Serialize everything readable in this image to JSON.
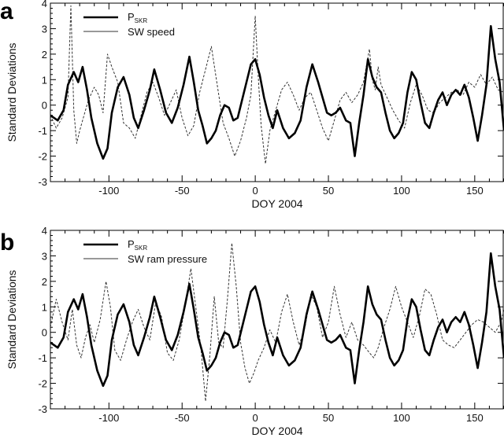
{
  "chart_data": [
    {
      "type": "line",
      "panel_label": "a",
      "xlabel": "DOY 2004",
      "ylabel": "Standard Deviations",
      "xlim": [
        -140,
        170
      ],
      "ylim": [
        -3,
        4
      ],
      "x_ticks": [
        -100,
        -50,
        0,
        50,
        100,
        150
      ],
      "y_ticks": [
        -3,
        -2,
        -1,
        0,
        1,
        2,
        3,
        4
      ],
      "legend_position": "top-left",
      "series": [
        {
          "name_main": "P",
          "name_sub": "SKR",
          "style": "thick-solid",
          "color": "#000000",
          "x": [
            -140,
            -135,
            -131,
            -128,
            -124,
            -121,
            -118,
            -115,
            -112,
            -108,
            -104,
            -101,
            -98,
            -94,
            -90,
            -86,
            -83,
            -80,
            -76,
            -72,
            -69,
            -65,
            -61,
            -57,
            -53,
            -49,
            -45,
            -42,
            -39,
            -36,
            -33,
            -30,
            -27,
            -24,
            -21,
            -18,
            -15,
            -12,
            -9,
            -6,
            -3,
            0,
            3,
            6,
            9,
            12,
            15,
            19,
            23,
            27,
            31,
            35,
            39,
            43,
            46,
            49,
            52,
            55,
            58,
            62,
            65,
            68,
            71,
            74,
            77,
            80,
            83,
            86,
            89,
            92,
            95,
            98,
            101,
            104,
            107,
            110,
            113,
            116,
            119,
            122,
            125,
            128,
            131,
            134,
            137,
            140,
            143,
            146,
            149,
            152,
            155,
            158,
            161,
            164,
            167,
            170
          ],
          "y": [
            -0.4,
            -0.6,
            -0.2,
            0.8,
            1.3,
            0.9,
            1.5,
            0.6,
            -0.5,
            -1.5,
            -2.1,
            -1.7,
            -0.3,
            0.7,
            1.1,
            0.4,
            -0.5,
            -0.9,
            -0.2,
            0.6,
            1.4,
            0.6,
            -0.3,
            -0.7,
            -0.1,
            0.8,
            1.9,
            0.9,
            -0.2,
            -0.8,
            -1.5,
            -1.3,
            -1.0,
            -0.4,
            0.0,
            -0.1,
            -0.6,
            -0.5,
            0.2,
            0.9,
            1.6,
            1.8,
            1.2,
            0.3,
            -0.4,
            -0.9,
            -0.2,
            -0.9,
            -1.3,
            -1.1,
            -0.6,
            0.7,
            1.6,
            0.9,
            0.3,
            -0.3,
            -0.4,
            -0.3,
            -0.1,
            -0.6,
            -0.7,
            -2.0,
            -0.7,
            0.4,
            1.8,
            1.1,
            0.7,
            0.5,
            -0.3,
            -1.0,
            -1.3,
            -1.1,
            -0.7,
            0.5,
            1.3,
            1.0,
            0.1,
            -0.7,
            -0.9,
            -0.3,
            0.2,
            0.5,
            0.0,
            0.4,
            0.6,
            0.4,
            0.8,
            0.3,
            -0.5,
            -1.4,
            -0.4,
            0.8,
            3.1,
            1.8,
            0.9,
            -1.0
          ]
        },
        {
          "name": "SW speed",
          "style": "thin-dashed",
          "color": "#333333",
          "x": [
            -140,
            -136,
            -132,
            -128,
            -126,
            -124,
            -122,
            -120,
            -117,
            -114,
            -110,
            -107,
            -104,
            -101,
            -98,
            -94,
            -90,
            -86,
            -82,
            -78,
            -74,
            -70,
            -66,
            -62,
            -58,
            -54,
            -50,
            -46,
            -42,
            -38,
            -34,
            -30,
            -26,
            -22,
            -18,
            -14,
            -10,
            -6,
            -3,
            0,
            2,
            4,
            7,
            10,
            14,
            18,
            22,
            26,
            30,
            34,
            38,
            42,
            46,
            50,
            54,
            58,
            62,
            66,
            70,
            74,
            78,
            80,
            82,
            84,
            86,
            90,
            94,
            98,
            102,
            106,
            110,
            114,
            118,
            122,
            126,
            130,
            134,
            138,
            142,
            146,
            150,
            154,
            158,
            162,
            166,
            170
          ],
          "y": [
            -0.4,
            -0.9,
            -0.5,
            0.3,
            3.9,
            -0.2,
            -1.5,
            -1.0,
            -0.4,
            0.2,
            0.7,
            0.4,
            -0.3,
            2.0,
            1.5,
            0.9,
            -0.7,
            -0.9,
            -1.3,
            -0.4,
            0.5,
            0.9,
            0.3,
            -0.4,
            0.1,
            0.6,
            -0.5,
            -1.2,
            -0.8,
            0.5,
            1.4,
            2.3,
            0.8,
            -0.7,
            -1.3,
            -2.0,
            -1.4,
            -0.5,
            0.4,
            3.5,
            1.2,
            -0.8,
            -2.3,
            -1.0,
            -0.2,
            0.6,
            0.9,
            0.4,
            -0.2,
            0.3,
            0.5,
            -0.2,
            -0.9,
            -1.4,
            -0.6,
            0.2,
            0.5,
            0.1,
            0.4,
            0.9,
            2.2,
            1.0,
            0.6,
            1.5,
            0.8,
            0.3,
            -0.2,
            -0.6,
            -0.9,
            0.1,
            0.8,
            0.4,
            -0.2,
            -0.3,
            0.1,
            0.3,
            0.5,
            0.6,
            0.4,
            0.9,
            0.7,
            1.2,
            0.8,
            1.1,
            0.6,
            0.5
          ]
        }
      ]
    },
    {
      "type": "line",
      "panel_label": "b",
      "xlabel": "DOY 2004",
      "ylabel": "Standard Deviations",
      "xlim": [
        -140,
        170
      ],
      "ylim": [
        -3,
        4
      ],
      "x_ticks": [
        -100,
        -50,
        0,
        50,
        100,
        150
      ],
      "y_ticks": [
        -3,
        -2,
        -1,
        0,
        1,
        2,
        3,
        4
      ],
      "legend_position": "top-left",
      "series": [
        {
          "name_main": "P",
          "name_sub": "SKR",
          "style": "thick-solid",
          "color": "#000000",
          "x": [
            -140,
            -135,
            -131,
            -128,
            -124,
            -121,
            -118,
            -115,
            -112,
            -108,
            -104,
            -101,
            -98,
            -94,
            -90,
            -86,
            -83,
            -80,
            -76,
            -72,
            -69,
            -65,
            -61,
            -57,
            -53,
            -49,
            -45,
            -42,
            -39,
            -36,
            -33,
            -30,
            -27,
            -24,
            -21,
            -18,
            -15,
            -12,
            -9,
            -6,
            -3,
            0,
            3,
            6,
            9,
            12,
            15,
            19,
            23,
            27,
            31,
            35,
            39,
            43,
            46,
            49,
            52,
            55,
            58,
            62,
            65,
            68,
            71,
            74,
            77,
            80,
            83,
            86,
            89,
            92,
            95,
            98,
            101,
            104,
            107,
            110,
            113,
            116,
            119,
            122,
            125,
            128,
            131,
            134,
            137,
            140,
            143,
            146,
            149,
            152,
            155,
            158,
            161,
            164,
            167,
            170
          ],
          "y": [
            -0.4,
            -0.6,
            -0.2,
            0.8,
            1.3,
            0.9,
            1.5,
            0.6,
            -0.5,
            -1.5,
            -2.1,
            -1.7,
            -0.3,
            0.7,
            1.1,
            0.4,
            -0.5,
            -0.9,
            -0.2,
            0.6,
            1.4,
            0.6,
            -0.3,
            -0.7,
            -0.1,
            0.8,
            1.9,
            0.9,
            -0.2,
            -0.8,
            -1.5,
            -1.3,
            -1.0,
            -0.4,
            0.0,
            -0.1,
            -0.6,
            -0.5,
            0.2,
            0.9,
            1.6,
            1.8,
            1.2,
            0.3,
            -0.4,
            -0.9,
            -0.2,
            -0.9,
            -1.3,
            -1.1,
            -0.6,
            0.7,
            1.6,
            0.9,
            0.3,
            -0.3,
            -0.4,
            -0.3,
            -0.1,
            -0.6,
            -0.7,
            -2.0,
            -0.7,
            0.4,
            1.8,
            1.1,
            0.7,
            0.5,
            -0.3,
            -1.0,
            -1.3,
            -1.1,
            -0.7,
            0.5,
            1.3,
            1.0,
            0.1,
            -0.7,
            -0.9,
            -0.3,
            0.2,
            0.5,
            0.0,
            0.4,
            0.6,
            0.4,
            0.8,
            0.3,
            -0.5,
            -1.4,
            -0.4,
            0.8,
            3.1,
            1.8,
            0.9,
            -1.0
          ]
        },
        {
          "name": "SW ram pressure",
          "style": "thin-dashed",
          "color": "#333333",
          "x": [
            -140,
            -136,
            -132,
            -128,
            -125,
            -122,
            -119,
            -116,
            -113,
            -110,
            -106,
            -102,
            -99,
            -96,
            -92,
            -88,
            -84,
            -80,
            -76,
            -72,
            -68,
            -64,
            -60,
            -56,
            -52,
            -48,
            -44,
            -40,
            -37,
            -34,
            -31,
            -28,
            -25,
            -22,
            -19,
            -16,
            -13,
            -10,
            -7,
            -4,
            -1,
            2,
            6,
            10,
            14,
            18,
            22,
            26,
            30,
            34,
            38,
            42,
            46,
            50,
            54,
            58,
            62,
            66,
            70,
            74,
            78,
            81,
            84,
            88,
            92,
            96,
            100,
            104,
            108,
            112,
            116,
            120,
            124,
            128,
            132,
            136,
            140,
            144,
            148,
            152,
            156,
            160,
            164,
            168,
            170
          ],
          "y": [
            0.2,
            1.3,
            0.4,
            -0.3,
            0.9,
            -0.5,
            -1.0,
            -0.2,
            0.3,
            -0.4,
            0.5,
            2.0,
            1.0,
            -0.7,
            -1.1,
            -0.3,
            0.4,
            0.9,
            0.2,
            -0.3,
            1.2,
            0.6,
            -0.8,
            -1.1,
            -0.3,
            1.0,
            2.5,
            0.7,
            -0.7,
            -2.7,
            -0.9,
            1.4,
            -0.4,
            -0.6,
            1.3,
            3.5,
            1.8,
            -0.4,
            -1.4,
            -2.0,
            -1.6,
            -1.1,
            -0.6,
            0.1,
            -0.4,
            0.8,
            1.5,
            0.4,
            -0.5,
            0.2,
            1.5,
            1.0,
            -0.2,
            0.4,
            1.8,
            0.7,
            -0.2,
            0.4,
            -0.3,
            -0.5,
            -0.8,
            -1.0,
            -0.6,
            0.2,
            0.9,
            1.8,
            1.0,
            0.4,
            -0.2,
            0.6,
            1.7,
            1.5,
            0.7,
            -0.3,
            -0.5,
            -0.6,
            -0.3,
            0.0,
            0.3,
            0.5,
            0.4,
            0.2,
            0.0,
            0.4,
            0.9
          ]
        }
      ]
    }
  ]
}
